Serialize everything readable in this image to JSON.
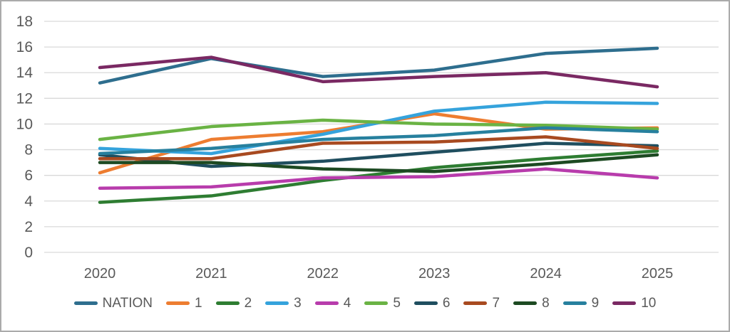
{
  "chart_data": {
    "type": "line",
    "title": "",
    "xlabel": "",
    "ylabel": "",
    "x_categories": [
      "2020",
      "2021",
      "2022",
      "2023",
      "2024",
      "2025"
    ],
    "ylim": [
      0,
      18
    ],
    "ytick_step": 2,
    "y_ticks": [
      "0",
      "2",
      "4",
      "6",
      "8",
      "10",
      "12",
      "14",
      "16",
      "18"
    ],
    "grid": "horizontal-only",
    "legend_position": "bottom",
    "series": [
      {
        "name": "NATION",
        "color": "#2e6e8e",
        "values": [
          13.2,
          15.1,
          13.7,
          14.2,
          15.5,
          15.9
        ]
      },
      {
        "name": "1",
        "color": "#ed7d31",
        "values": [
          6.2,
          8.8,
          9.4,
          10.8,
          9.6,
          9.7
        ]
      },
      {
        "name": "2",
        "color": "#2e7d32",
        "values": [
          3.9,
          4.4,
          5.6,
          6.6,
          7.3,
          7.9
        ]
      },
      {
        "name": "3",
        "color": "#35a3dc",
        "values": [
          8.1,
          7.7,
          9.2,
          11.0,
          11.7,
          11.6
        ]
      },
      {
        "name": "4",
        "color": "#b83cac",
        "values": [
          5.0,
          5.1,
          5.8,
          5.9,
          6.5,
          5.8
        ]
      },
      {
        "name": "5",
        "color": "#6ab344",
        "values": [
          8.8,
          9.8,
          10.3,
          10.0,
          9.9,
          9.6
        ]
      },
      {
        "name": "6",
        "color": "#1f4e5f",
        "values": [
          7.6,
          6.7,
          7.1,
          7.8,
          8.5,
          8.3
        ]
      },
      {
        "name": "7",
        "color": "#a84a20",
        "values": [
          7.3,
          7.3,
          8.5,
          8.6,
          9.0,
          8.1
        ]
      },
      {
        "name": "8",
        "color": "#1d4a22",
        "values": [
          7.0,
          7.0,
          6.5,
          6.3,
          6.9,
          7.6
        ]
      },
      {
        "name": "9",
        "color": "#27809e",
        "values": [
          7.7,
          8.1,
          8.8,
          9.1,
          9.7,
          9.4
        ]
      },
      {
        "name": "10",
        "color": "#7a2963",
        "values": [
          14.4,
          15.2,
          13.3,
          13.7,
          14.0,
          12.9
        ]
      }
    ]
  },
  "style": {
    "background": "#ffffff",
    "border_color": "#ababab",
    "gridline_color": "#d9d9d9",
    "axis_text_color": "#595959"
  }
}
